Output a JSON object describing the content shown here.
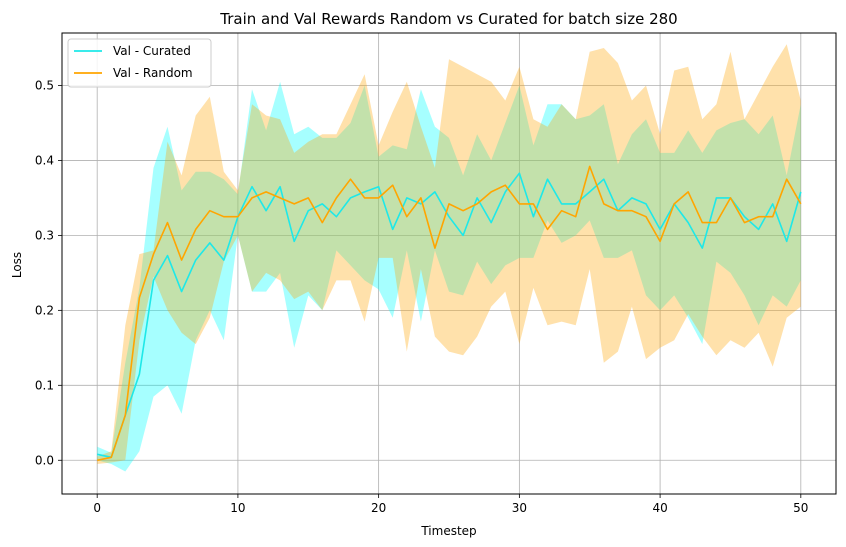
{
  "chart_data": {
    "type": "line",
    "title": "Train and Val Rewards Random vs Curated for batch size 280",
    "xlabel": "Timestep",
    "ylabel": "Loss",
    "xlim": [
      -2.5,
      52.5
    ],
    "ylim": [
      -0.045,
      0.57
    ],
    "xticks": [
      0,
      10,
      20,
      30,
      40,
      50
    ],
    "yticks": [
      0.0,
      0.1,
      0.2,
      0.3,
      0.4,
      0.5
    ],
    "ytick_labels": [
      "0.0",
      "0.1",
      "0.2",
      "0.3",
      "0.4",
      "0.5"
    ],
    "grid": true,
    "legend_position": "upper-left",
    "x": [
      0,
      1,
      2,
      3,
      4,
      5,
      6,
      7,
      8,
      9,
      10,
      11,
      12,
      13,
      14,
      15,
      16,
      17,
      18,
      19,
      20,
      21,
      22,
      23,
      24,
      25,
      26,
      27,
      28,
      29,
      30,
      31,
      32,
      33,
      34,
      35,
      36,
      37,
      38,
      39,
      40,
      41,
      42,
      43,
      44,
      45,
      46,
      47,
      48,
      49,
      50
    ],
    "series": [
      {
        "name": "Val - Curated",
        "color": "#00ffff",
        "line_color": "#1ee8e8",
        "fill_opacity": 0.35,
        "mean": [
          0.008,
          0.004,
          0.06,
          0.115,
          0.24,
          0.273,
          0.225,
          0.267,
          0.29,
          0.267,
          0.325,
          0.365,
          0.333,
          0.365,
          0.292,
          0.333,
          0.342,
          0.325,
          0.35,
          0.358,
          0.365,
          0.308,
          0.35,
          0.342,
          0.358,
          0.325,
          0.3,
          0.35,
          0.317,
          0.358,
          0.383,
          0.325,
          0.375,
          0.342,
          0.342,
          0.358,
          0.375,
          0.333,
          0.35,
          0.342,
          0.308,
          0.342,
          0.317,
          0.283,
          0.35,
          0.35,
          0.325,
          0.308,
          0.342,
          0.292,
          0.358
        ],
        "lower": [
          0.0,
          -0.005,
          -0.015,
          0.012,
          0.085,
          0.1,
          0.062,
          0.16,
          0.2,
          0.16,
          0.3,
          0.225,
          0.225,
          0.25,
          0.15,
          0.22,
          0.2,
          0.28,
          0.26,
          0.24,
          0.228,
          0.19,
          0.28,
          0.185,
          0.28,
          0.225,
          0.22,
          0.265,
          0.235,
          0.26,
          0.27,
          0.27,
          0.32,
          0.29,
          0.3,
          0.32,
          0.27,
          0.27,
          0.28,
          0.22,
          0.2,
          0.22,
          0.19,
          0.155,
          0.265,
          0.25,
          0.22,
          0.18,
          0.22,
          0.205,
          0.24
        ],
        "upper": [
          0.018,
          0.01,
          0.13,
          0.23,
          0.39,
          0.445,
          0.36,
          0.385,
          0.385,
          0.375,
          0.355,
          0.495,
          0.44,
          0.505,
          0.435,
          0.445,
          0.43,
          0.43,
          0.45,
          0.5,
          0.405,
          0.42,
          0.415,
          0.495,
          0.445,
          0.43,
          0.38,
          0.435,
          0.4,
          0.45,
          0.5,
          0.42,
          0.475,
          0.475,
          0.455,
          0.46,
          0.475,
          0.395,
          0.435,
          0.455,
          0.41,
          0.41,
          0.44,
          0.41,
          0.44,
          0.45,
          0.455,
          0.435,
          0.46,
          0.38,
          0.475
        ]
      },
      {
        "name": "Val - Random",
        "color": "#ffa500",
        "line_color": "#ffa500",
        "fill_opacity": 0.33,
        "mean": [
          0.0,
          0.004,
          0.06,
          0.217,
          0.275,
          0.317,
          0.267,
          0.308,
          0.333,
          0.325,
          0.325,
          0.35,
          0.358,
          0.35,
          0.342,
          0.35,
          0.317,
          0.35,
          0.375,
          0.35,
          0.35,
          0.367,
          0.325,
          0.35,
          0.283,
          0.342,
          0.333,
          0.342,
          0.358,
          0.367,
          0.342,
          0.342,
          0.308,
          0.333,
          0.325,
          0.392,
          0.342,
          0.333,
          0.333,
          0.325,
          0.292,
          0.342,
          0.358,
          0.317,
          0.317,
          0.35,
          0.317,
          0.325,
          0.325,
          0.375,
          0.342
        ],
        "lower": [
          -0.005,
          -0.003,
          0.0,
          0.16,
          0.245,
          0.2,
          0.17,
          0.155,
          0.19,
          0.265,
          0.3,
          0.225,
          0.25,
          0.24,
          0.215,
          0.225,
          0.2,
          0.24,
          0.24,
          0.185,
          0.27,
          0.27,
          0.145,
          0.255,
          0.165,
          0.145,
          0.14,
          0.165,
          0.205,
          0.225,
          0.155,
          0.23,
          0.18,
          0.185,
          0.18,
          0.255,
          0.13,
          0.145,
          0.205,
          0.135,
          0.15,
          0.16,
          0.195,
          0.165,
          0.14,
          0.16,
          0.15,
          0.17,
          0.125,
          0.19,
          0.205
        ],
        "upper": [
          0.005,
          0.012,
          0.18,
          0.275,
          0.28,
          0.425,
          0.38,
          0.46,
          0.485,
          0.385,
          0.36,
          0.475,
          0.46,
          0.455,
          0.41,
          0.425,
          0.435,
          0.435,
          0.475,
          0.515,
          0.42,
          0.465,
          0.505,
          0.445,
          0.39,
          0.535,
          0.525,
          0.515,
          0.505,
          0.48,
          0.525,
          0.455,
          0.445,
          0.475,
          0.455,
          0.545,
          0.55,
          0.53,
          0.48,
          0.5,
          0.435,
          0.52,
          0.525,
          0.455,
          0.475,
          0.545,
          0.455,
          0.49,
          0.525,
          0.555,
          0.48
        ]
      }
    ]
  }
}
